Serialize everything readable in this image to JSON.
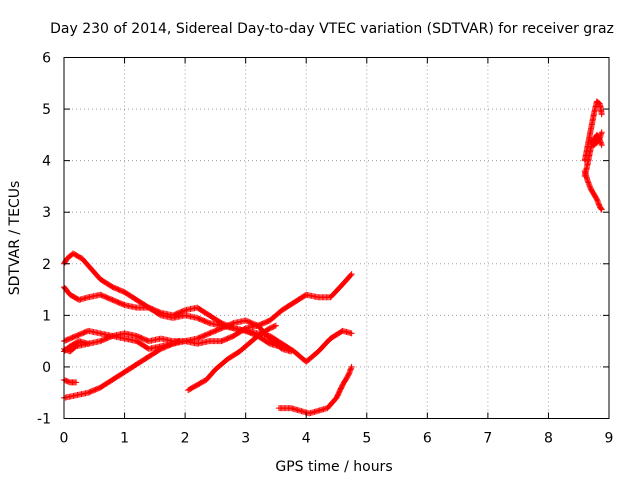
{
  "chart_data": {
    "type": "scatter",
    "title": "Day 230 of 2014, Sidereal Day-to-day VTEC variation (SDTVAR) for receiver graz",
    "xlabel": "GPS time / hours",
    "ylabel": "SDTVAR / TECUs",
    "xlim": [
      0,
      9
    ],
    "ylim": [
      -1,
      6
    ],
    "x_ticks": [
      "0",
      "1",
      "2",
      "3",
      "4",
      "5",
      "6",
      "7",
      "8",
      "9"
    ],
    "y_ticks": [
      "-1",
      "0",
      "1",
      "2",
      "3",
      "4",
      "5",
      "6"
    ],
    "grid": true,
    "legend": "none",
    "marker": "plus",
    "color": "#ff0000",
    "series": [
      {
        "points": [
          [
            0.0,
            2.0
          ],
          [
            0.05,
            2.1
          ],
          [
            0.15,
            2.2
          ],
          [
            0.3,
            2.1
          ],
          [
            0.45,
            1.9
          ],
          [
            0.6,
            1.7
          ],
          [
            0.8,
            1.55
          ],
          [
            1.0,
            1.45
          ],
          [
            1.2,
            1.3
          ],
          [
            1.4,
            1.15
          ],
          [
            1.6,
            1.0
          ],
          [
            1.8,
            0.95
          ],
          [
            2.0,
            1.0
          ],
          [
            2.2,
            0.95
          ],
          [
            2.4,
            0.85
          ],
          [
            2.6,
            0.8
          ],
          [
            2.8,
            0.75
          ],
          [
            3.0,
            0.7
          ],
          [
            3.2,
            0.6
          ],
          [
            3.4,
            0.45
          ],
          [
            3.55,
            0.4
          ]
        ]
      },
      {
        "points": [
          [
            0.0,
            1.55
          ],
          [
            0.1,
            1.4
          ],
          [
            0.25,
            1.3
          ],
          [
            0.4,
            1.35
          ],
          [
            0.6,
            1.4
          ],
          [
            0.8,
            1.3
          ],
          [
            1.0,
            1.2
          ],
          [
            1.2,
            1.15
          ],
          [
            1.4,
            1.15
          ],
          [
            1.6,
            1.05
          ],
          [
            1.8,
            1.0
          ],
          [
            2.0,
            1.1
          ],
          [
            2.2,
            1.15
          ],
          [
            2.4,
            1.0
          ],
          [
            2.6,
            0.85
          ],
          [
            2.8,
            0.75
          ],
          [
            3.0,
            0.7
          ],
          [
            3.2,
            0.65
          ],
          [
            3.4,
            0.6
          ],
          [
            3.6,
            0.45
          ],
          [
            3.8,
            0.3
          ],
          [
            4.0,
            0.1
          ],
          [
            4.2,
            0.3
          ],
          [
            4.4,
            0.55
          ],
          [
            4.6,
            0.7
          ],
          [
            4.75,
            0.65
          ]
        ]
      },
      {
        "points": [
          [
            0.0,
            0.5
          ],
          [
            0.2,
            0.6
          ],
          [
            0.4,
            0.7
          ],
          [
            0.6,
            0.65
          ],
          [
            0.8,
            0.6
          ],
          [
            1.0,
            0.65
          ],
          [
            1.2,
            0.6
          ],
          [
            1.4,
            0.5
          ],
          [
            1.6,
            0.55
          ],
          [
            1.8,
            0.5
          ],
          [
            2.0,
            0.5
          ],
          [
            2.2,
            0.55
          ],
          [
            2.4,
            0.65
          ],
          [
            2.6,
            0.75
          ],
          [
            2.8,
            0.85
          ],
          [
            3.0,
            0.9
          ],
          [
            3.2,
            0.8
          ],
          [
            3.4,
            0.9
          ],
          [
            3.6,
            1.1
          ],
          [
            3.8,
            1.25
          ],
          [
            4.0,
            1.4
          ],
          [
            4.2,
            1.35
          ],
          [
            4.4,
            1.35
          ],
          [
            4.6,
            1.6
          ],
          [
            4.75,
            1.8
          ]
        ]
      },
      {
        "points": [
          [
            0.0,
            0.3
          ],
          [
            0.1,
            0.4
          ],
          [
            0.25,
            0.5
          ],
          [
            0.4,
            0.45
          ],
          [
            0.6,
            0.5
          ],
          [
            0.8,
            0.6
          ],
          [
            1.0,
            0.55
          ],
          [
            1.2,
            0.5
          ],
          [
            1.4,
            0.35
          ],
          [
            1.6,
            0.4
          ],
          [
            1.8,
            0.45
          ],
          [
            2.0,
            0.5
          ],
          [
            2.2,
            0.45
          ],
          [
            2.4,
            0.5
          ],
          [
            2.6,
            0.5
          ],
          [
            2.8,
            0.6
          ],
          [
            3.0,
            0.75
          ],
          [
            3.2,
            0.8
          ],
          [
            3.4,
            0.55
          ],
          [
            3.6,
            0.35
          ],
          [
            3.75,
            0.3
          ]
        ]
      },
      {
        "points": [
          [
            0.0,
            0.35
          ],
          [
            0.1,
            0.3
          ],
          [
            0.2,
            0.4
          ],
          [
            0.4,
            0.45
          ]
        ]
      },
      {
        "points": [
          [
            0.0,
            -0.6
          ],
          [
            0.2,
            -0.55
          ],
          [
            0.4,
            -0.5
          ],
          [
            0.6,
            -0.4
          ],
          [
            0.8,
            -0.25
          ],
          [
            1.0,
            -0.1
          ],
          [
            1.2,
            0.05
          ],
          [
            1.4,
            0.2
          ],
          [
            1.6,
            0.35
          ],
          [
            1.8,
            0.45
          ],
          [
            1.9,
            0.5
          ]
        ]
      },
      {
        "points": [
          [
            0.0,
            -0.25
          ],
          [
            0.1,
            -0.3
          ],
          [
            0.2,
            -0.3
          ]
        ]
      },
      {
        "points": [
          [
            2.05,
            -0.45
          ],
          [
            2.2,
            -0.35
          ],
          [
            2.35,
            -0.25
          ],
          [
            2.5,
            -0.05
          ],
          [
            2.7,
            0.15
          ],
          [
            2.9,
            0.3
          ],
          [
            3.0,
            0.4
          ],
          [
            3.2,
            0.6
          ],
          [
            3.4,
            0.75
          ],
          [
            3.5,
            0.8
          ]
        ]
      },
      {
        "points": [
          [
            3.55,
            -0.8
          ],
          [
            3.75,
            -0.8
          ],
          [
            3.9,
            -0.85
          ],
          [
            4.05,
            -0.9
          ],
          [
            4.2,
            -0.85
          ],
          [
            4.35,
            -0.8
          ],
          [
            4.5,
            -0.6
          ],
          [
            4.6,
            -0.35
          ],
          [
            4.7,
            -0.15
          ],
          [
            4.75,
            0.0
          ]
        ]
      },
      {
        "points": [
          [
            8.6,
            4.0
          ],
          [
            8.65,
            4.3
          ],
          [
            8.7,
            4.6
          ],
          [
            8.75,
            4.9
          ],
          [
            8.8,
            5.15
          ],
          [
            8.85,
            5.1
          ],
          [
            8.88,
            4.9
          ]
        ]
      },
      {
        "points": [
          [
            8.6,
            3.7
          ],
          [
            8.65,
            3.95
          ],
          [
            8.7,
            4.25
          ],
          [
            8.75,
            4.4
          ],
          [
            8.8,
            4.5
          ],
          [
            8.85,
            4.4
          ],
          [
            8.88,
            4.3
          ]
        ]
      },
      {
        "points": [
          [
            8.7,
            4.4
          ],
          [
            8.75,
            4.3
          ],
          [
            8.8,
            4.35
          ],
          [
            8.85,
            4.45
          ],
          [
            8.88,
            4.55
          ]
        ]
      },
      {
        "points": [
          [
            8.6,
            3.8
          ],
          [
            8.65,
            3.6
          ],
          [
            8.7,
            3.45
          ],
          [
            8.75,
            3.35
          ],
          [
            8.8,
            3.25
          ],
          [
            8.85,
            3.1
          ],
          [
            8.88,
            3.05
          ]
        ]
      }
    ]
  }
}
